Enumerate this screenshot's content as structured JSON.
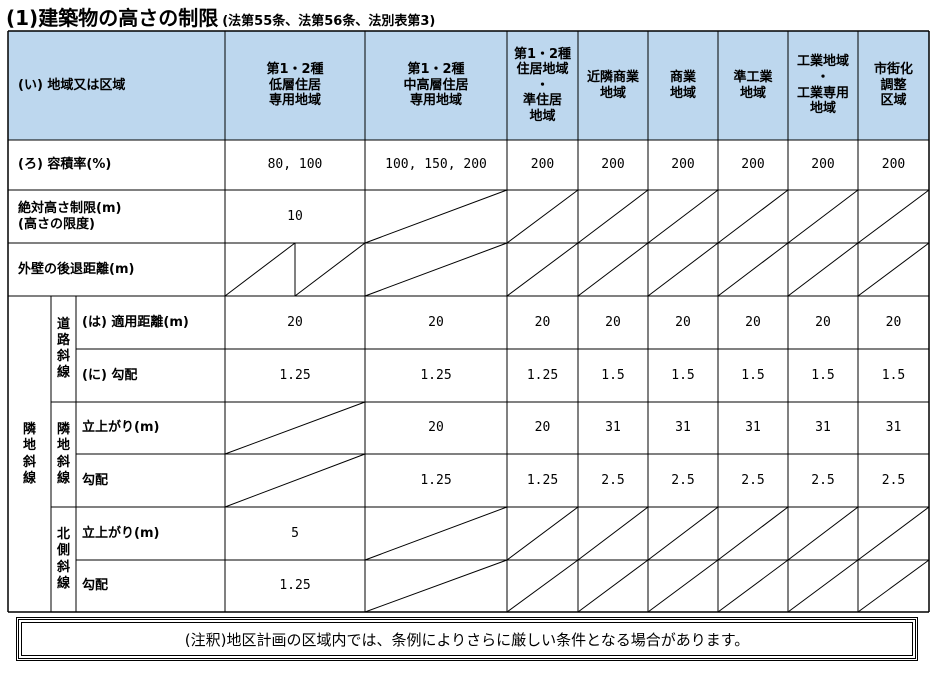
{
  "title": {
    "main": "(1)建築物の高さの制限",
    "sub": "(法第55条、法第56条、法別表第3)"
  },
  "header": {
    "row_label": "(い) 地域又は区域",
    "columns": [
      "第1・2種\n低層住居\n専用地域",
      "第1・2種\n中高層住居\n専用地域",
      "第1・2種\n住居地域\n・\n準住居\n地域",
      "近隣商業\n地域",
      "商業\n地域",
      "準工業\n地域",
      "工業地域\n・\n工業専用\n地域",
      "市街化\n調整\n区域"
    ]
  },
  "rows": {
    "far": {
      "label": "(ろ) 容積率(%)",
      "values": [
        "80, 100",
        "100, 150, 200",
        "200",
        "200",
        "200",
        "200",
        "200",
        "200"
      ]
    },
    "abs_height": {
      "label": "絶対高さ制限(m)\n(高さの限度)",
      "values": [
        "10",
        "",
        "",
        "",
        "",
        "",
        "",
        ""
      ]
    },
    "setback": {
      "label": "外壁の後退距離(m)",
      "values": [
        "",
        "",
        "",
        "",
        "",
        "",
        "",
        ""
      ]
    },
    "road_dist": {
      "label": "(は) 適用距離(m)",
      "values": [
        "20",
        "20",
        "20",
        "20",
        "20",
        "20",
        "20",
        "20"
      ]
    },
    "road_grad": {
      "label": "(に) 勾配",
      "values": [
        "1.25",
        "1.25",
        "1.25",
        "1.5",
        "1.5",
        "1.5",
        "1.5",
        "1.5"
      ]
    },
    "adj_rise": {
      "label": "立上がり(m)",
      "values": [
        "",
        "20",
        "20",
        "31",
        "31",
        "31",
        "31",
        "31"
      ]
    },
    "adj_grad": {
      "label": "勾配",
      "values": [
        "",
        "1.25",
        "1.25",
        "2.5",
        "2.5",
        "2.5",
        "2.5",
        "2.5"
      ]
    },
    "north_rise": {
      "label": "立上がり(m)",
      "values": [
        "5",
        "",
        "",
        "",
        "",
        "",
        "",
        ""
      ]
    },
    "north_grad": {
      "label": "勾配",
      "values": [
        "1.25",
        "",
        "",
        "",
        "",
        "",
        "",
        ""
      ]
    }
  },
  "groups": {
    "road": "道路斜線",
    "adjacent": "隣地斜線",
    "adjacent_sub": "隣地斜線",
    "north": "北側斜線"
  },
  "note": "(注釈)地区計画の区域内では、条例によりさらに厳しい条件となる場合があります。"
}
